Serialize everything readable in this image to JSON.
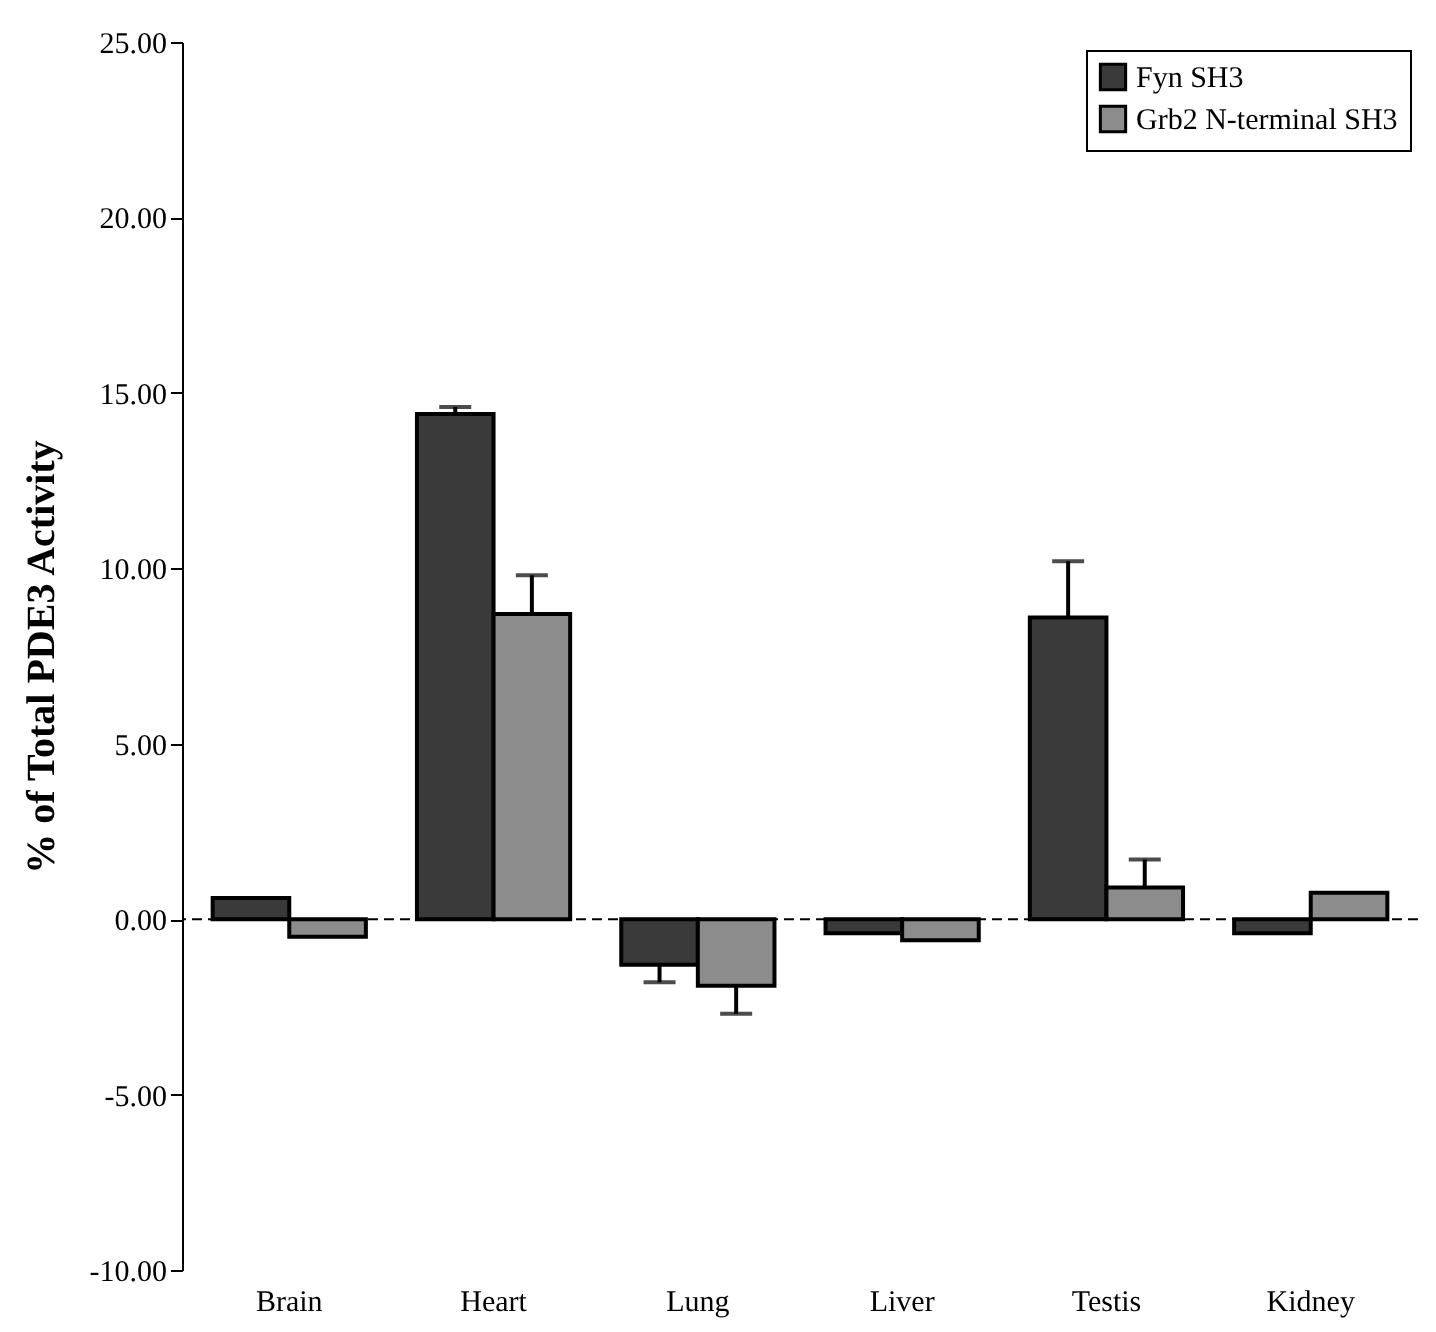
{
  "chart_data": {
    "type": "bar",
    "ylabel": "% of Total PDE3 Activity",
    "categories": [
      "Brain",
      "Heart",
      "Lung",
      "Liver",
      "Testis",
      "Kidney"
    ],
    "series": [
      {
        "name": "Fyn SH3",
        "color": "#3a3a3a",
        "values": [
          0.6,
          14.4,
          -1.3,
          -0.4,
          8.6,
          -0.4
        ],
        "errors": [
          null,
          0.2,
          0.5,
          null,
          1.6,
          null
        ]
      },
      {
        "name": "Grb2 N-terminal SH3",
        "color": "#8c8c8c",
        "values": [
          -0.5,
          8.7,
          -1.9,
          -0.6,
          0.9,
          0.75
        ],
        "errors": [
          null,
          1.1,
          0.8,
          null,
          0.8,
          null
        ]
      }
    ],
    "ylim": [
      -10,
      25
    ],
    "yticks": [
      {
        "value": -10,
        "label": "-10.00"
      },
      {
        "value": -5,
        "label": "-5.00"
      },
      {
        "value": 0,
        "label": "0.00"
      },
      {
        "value": 5,
        "label": "5.00"
      },
      {
        "value": 10,
        "label": "10.00"
      },
      {
        "value": 15,
        "label": "15.00"
      },
      {
        "value": 20,
        "label": "20.00"
      },
      {
        "value": 25,
        "label": "25.00"
      }
    ],
    "ref_lines": [
      {
        "axis": "y",
        "value": 0,
        "line_style": "dashed"
      }
    ],
    "legend": "top right",
    "grid": false
  }
}
